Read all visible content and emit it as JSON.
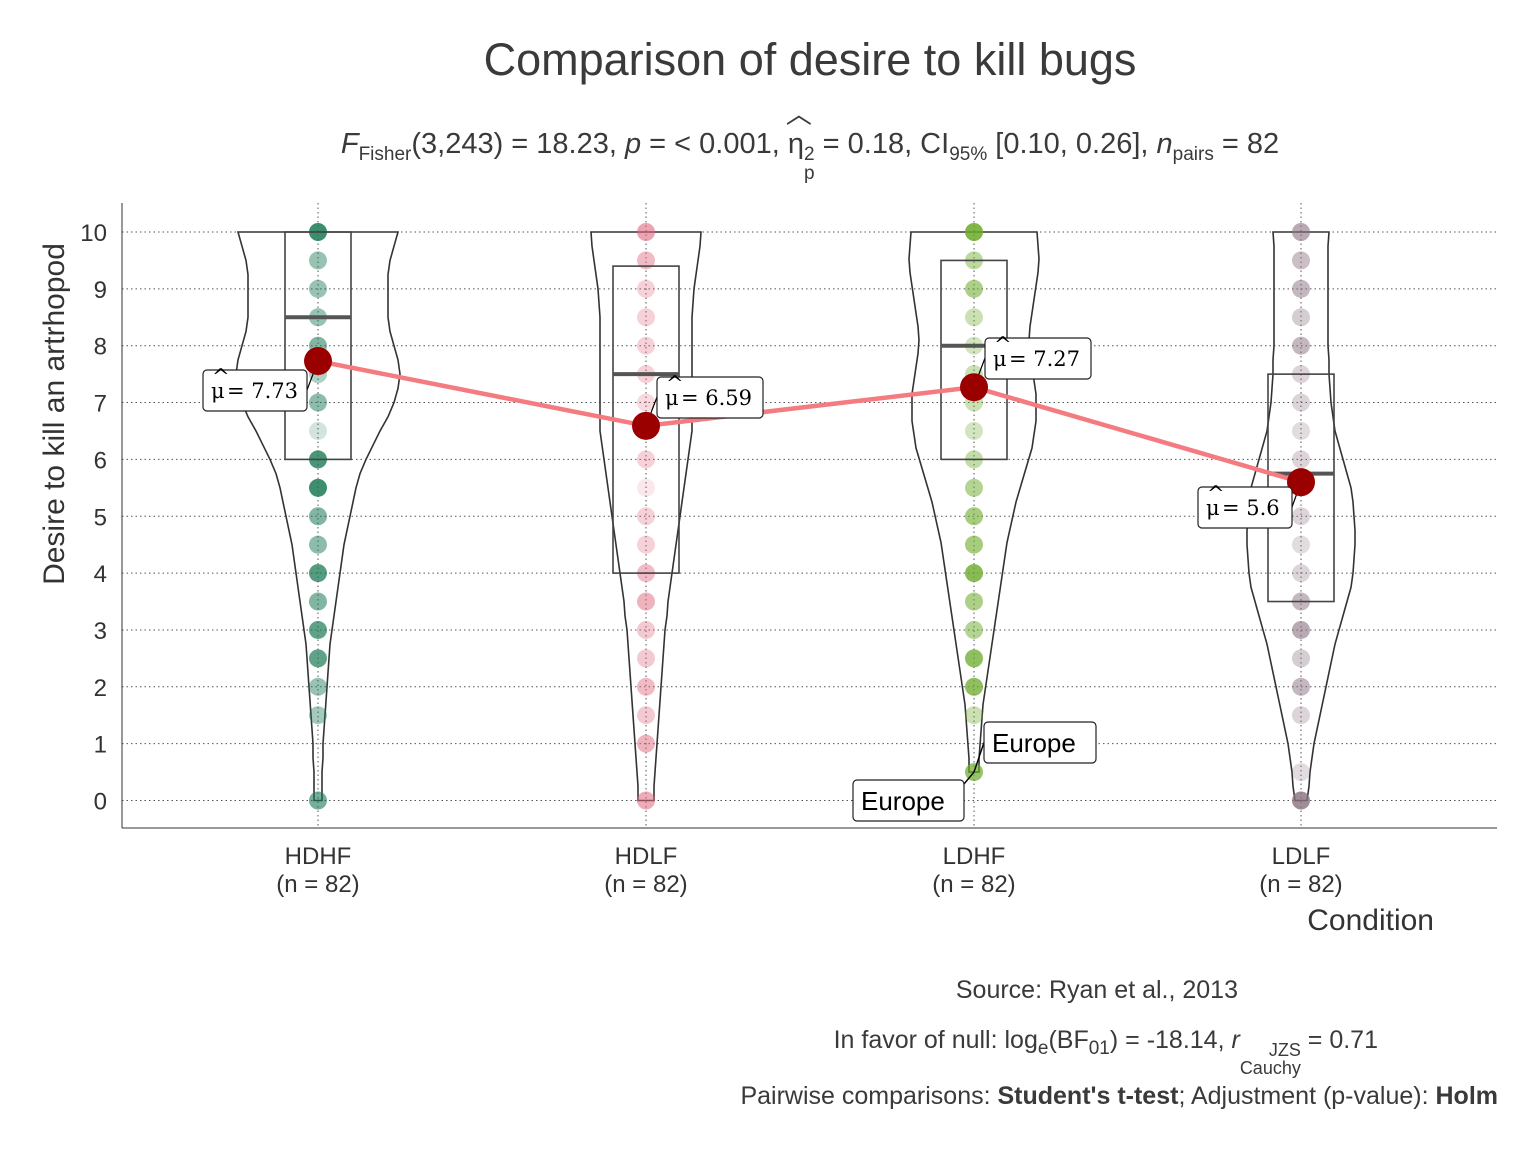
{
  "title": "Comparison of desire to kill bugs",
  "subtitle": {
    "F_symbol": "F",
    "F_sub": "Fisher",
    "df_and_stat": "(3,243) = 18.23, ",
    "p_symbol": "p",
    "p_value": " = < 0.001, ",
    "eta_symbol": "η",
    "eta_sup": "2",
    "eta_sub": "p",
    "eta_value": " = 0.18, CI",
    "ci_sub": "95%",
    "ci_value": " [0.10, 0.26], ",
    "n_symbol": "n",
    "n_sub": "pairs",
    "n_value": " = 82"
  },
  "captions": {
    "source": "Source: Ryan et al., 2013",
    "bf_prefix": "In favor of null: log",
    "bf_log_sub": "e",
    "bf_mid": "(BF",
    "bf_sub": "01",
    "bf_value": ") = -18.14, ",
    "r_symbol": "r",
    "r_sup": "JZS",
    "r_sub": "Cauchy",
    "r_value": " = 0.71",
    "pw_prefix": "Pairwise comparisons: ",
    "pw_test": "Student's t-test",
    "pw_mid": "; Adjustment (p-value): ",
    "pw_adjust": "Holm"
  },
  "chart_data": {
    "type": "violin-box-dot",
    "title": "Comparison of desire to kill bugs",
    "xlabel": "Condition",
    "ylabel": "Desire to kill an artrhopod",
    "ylim": [
      -0.5,
      10.5
    ],
    "yticks": [
      0,
      1,
      2,
      3,
      4,
      5,
      6,
      7,
      8,
      9,
      10
    ],
    "grid": true,
    "groups": [
      {
        "name": "HDHF",
        "n_label": "(n = 82)",
        "color": "#1b7a55",
        "box": {
          "q1": 6,
          "median": 8.5,
          "q3": 10
        },
        "mean": 7.73,
        "mean_label": "= 7.73",
        "values": [
          0,
          1.5,
          2,
          2.5,
          3,
          3.5,
          4,
          4.5,
          5,
          5.5,
          6,
          6.5,
          7,
          7.5,
          8,
          8.5,
          9,
          9.5,
          10
        ],
        "alphas": [
          0.6,
          0.4,
          0.45,
          0.7,
          0.7,
          0.55,
          0.75,
          0.5,
          0.55,
          0.85,
          0.8,
          0.2,
          0.5,
          0.35,
          0.55,
          0.45,
          0.45,
          0.45,
          0.85
        ]
      },
      {
        "name": "HDLF",
        "n_label": "(n = 82)",
        "color": "#e0687e",
        "box": {
          "q1": 4,
          "median": 7.5,
          "q3": 9.4
        },
        "mean": 6.59,
        "mean_label": "= 6.59",
        "values": [
          0,
          1,
          1.5,
          2,
          2.5,
          3,
          3.5,
          4,
          4.5,
          5,
          5.5,
          6,
          6.5,
          7,
          7.5,
          8,
          8.5,
          9,
          9.5,
          10
        ],
        "alphas": [
          0.55,
          0.5,
          0.35,
          0.45,
          0.35,
          0.35,
          0.5,
          0.45,
          0.3,
          0.3,
          0.15,
          0.3,
          0.15,
          0.25,
          0.3,
          0.3,
          0.3,
          0.3,
          0.45,
          0.6
        ]
      },
      {
        "name": "LDHF",
        "n_label": "(n = 82)",
        "color": "#6aaa28",
        "box": {
          "q1": 6,
          "median": 8,
          "q3": 9.5
        },
        "mean": 7.27,
        "mean_label": "= 7.27",
        "values": [
          0.5,
          1.5,
          2,
          2.5,
          3,
          3.5,
          4,
          4.5,
          5,
          5.5,
          6,
          6.5,
          7,
          7.5,
          8,
          8.5,
          9,
          9.5,
          10
        ],
        "alphas": [
          0.7,
          0.35,
          0.75,
          0.75,
          0.5,
          0.55,
          0.8,
          0.6,
          0.6,
          0.5,
          0.4,
          0.3,
          0.35,
          0.35,
          0.3,
          0.35,
          0.55,
          0.45,
          0.85
        ]
      },
      {
        "name": "LDLF",
        "n_label": "(n = 82)",
        "color": "#8a7080",
        "box": {
          "q1": 3.5,
          "median": 5.75,
          "q3": 7.5
        },
        "mean": 5.6,
        "mean_label": "= 5.6",
        "values": [
          0,
          0.5,
          1.5,
          2,
          2.5,
          3,
          3.5,
          4,
          4.5,
          5,
          5.5,
          6,
          6.5,
          7,
          7.5,
          8,
          8.5,
          9,
          9.5,
          10
        ],
        "alphas": [
          0.8,
          0.25,
          0.3,
          0.5,
          0.35,
          0.6,
          0.5,
          0.3,
          0.25,
          0.3,
          0.25,
          0.3,
          0.25,
          0.3,
          0.3,
          0.5,
          0.35,
          0.5,
          0.45,
          0.6
        ]
      }
    ],
    "annotations": [
      {
        "group": "LDHF",
        "value": 0.5,
        "labels": [
          "Europe",
          "Europe"
        ]
      }
    ]
  },
  "colors": {
    "mean_point": "#9b0000",
    "mean_line": "#f47b7f"
  }
}
